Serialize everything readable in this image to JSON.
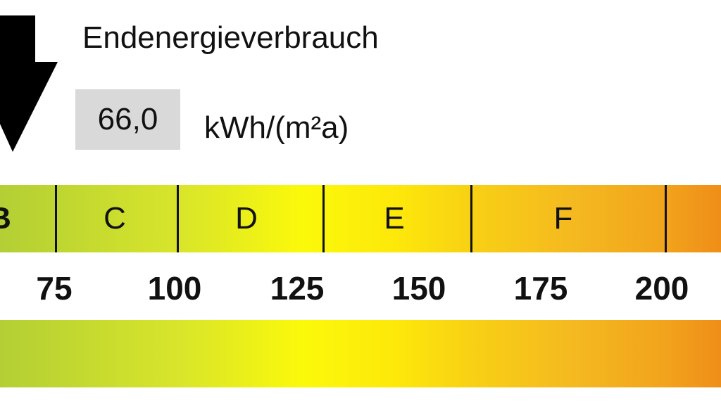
{
  "title": "Endenergieverbrauch",
  "value": "66,0",
  "unit": "kWh/(m²a)",
  "classes": [
    "B",
    "C",
    "D",
    "E",
    "F"
  ],
  "ticks": [
    "75",
    "100",
    "125",
    "150",
    "175",
    "200"
  ],
  "indicator_icon": "arrow-down-icon"
}
